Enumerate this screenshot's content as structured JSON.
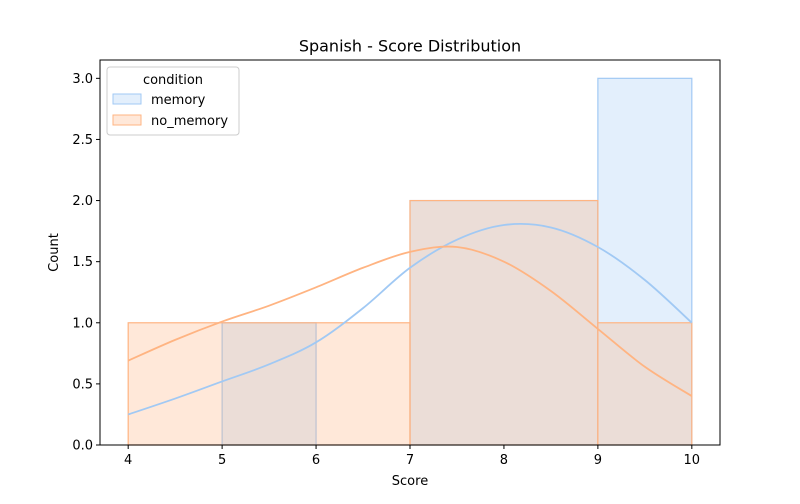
{
  "chart_data": {
    "type": "histogram",
    "title": "Spanish - Score Distribution",
    "xlabel": "Score",
    "ylabel": "Count",
    "xlim": [
      3.7,
      10.3
    ],
    "ylim": [
      0,
      3.15
    ],
    "x_ticks": [
      4,
      5,
      6,
      7,
      8,
      9,
      10
    ],
    "y_ticks": [
      0.0,
      0.5,
      1.0,
      1.5,
      2.0,
      2.5,
      3.0
    ],
    "y_tick_labels": [
      "0.0",
      "0.5",
      "1.0",
      "1.5",
      "2.0",
      "2.5",
      "3.0"
    ],
    "legend": {
      "title": "condition",
      "placement": "top-left"
    },
    "series": [
      {
        "name": "memory",
        "color": "#a1c9f4",
        "bins": [
          {
            "x0": 5,
            "x1": 6,
            "count": 1
          },
          {
            "x0": 6,
            "x1": 7,
            "count": 0
          },
          {
            "x0": 7,
            "x1": 9,
            "count": 2
          },
          {
            "x0": 9,
            "x1": 10,
            "count": 3
          }
        ],
        "kde": [
          [
            4,
            0.25
          ],
          [
            4.5,
            0.38
          ],
          [
            5,
            0.52
          ],
          [
            5.5,
            0.66
          ],
          [
            6,
            0.84
          ],
          [
            6.5,
            1.12
          ],
          [
            7,
            1.45
          ],
          [
            7.5,
            1.68
          ],
          [
            8,
            1.8
          ],
          [
            8.5,
            1.78
          ],
          [
            9,
            1.62
          ],
          [
            9.5,
            1.35
          ],
          [
            10,
            1.0
          ]
        ]
      },
      {
        "name": "no_memory",
        "color": "#ffb482",
        "bins": [
          {
            "x0": 4,
            "x1": 7,
            "count": 1
          },
          {
            "x0": 7,
            "x1": 9,
            "count": 2
          },
          {
            "x0": 9,
            "x1": 10,
            "count": 1
          }
        ],
        "kde": [
          [
            4,
            0.69
          ],
          [
            4.5,
            0.86
          ],
          [
            5,
            1.01
          ],
          [
            5.5,
            1.14
          ],
          [
            6,
            1.29
          ],
          [
            6.5,
            1.45
          ],
          [
            7,
            1.58
          ],
          [
            7.5,
            1.62
          ],
          [
            8,
            1.5
          ],
          [
            8.5,
            1.26
          ],
          [
            9,
            0.95
          ],
          [
            9.5,
            0.64
          ],
          [
            10,
            0.4
          ]
        ]
      }
    ]
  }
}
